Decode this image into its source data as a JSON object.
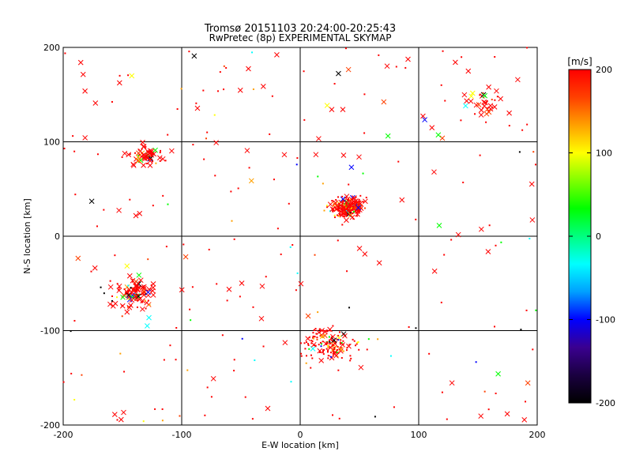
{
  "chart_data": {
    "type": "scatter",
    "title": "Tromsø 20151103 20:24:00-20:25:43",
    "subtitle": "RwPretec (8p) EXPERIMENTAL SKYMAP",
    "xlabel": "E-W location [km]",
    "ylabel": "N-S location [km]",
    "xlim": [
      -200,
      200
    ],
    "ylim": [
      -200,
      200
    ],
    "xticks": [
      "-200",
      "-100",
      "0",
      "100",
      "200"
    ],
    "yticks": [
      "200",
      "100",
      "0",
      "-100",
      "-200"
    ],
    "grid": true,
    "colorbar": {
      "label": "[m/s]",
      "range": [
        -200,
        200
      ],
      "ticks": [
        "200",
        "100",
        "0",
        "-100",
        "-200"
      ],
      "colormap": [
        "#000000",
        "#1a0040",
        "#3a0090",
        "#0000ff",
        "#00a0ff",
        "#00ffff",
        "#00ff80",
        "#00ff00",
        "#80ff00",
        "#ffff00",
        "#ffa000",
        "#ff4000",
        "#ff0000"
      ]
    },
    "marker_types": [
      "x",
      "point"
    ]
  }
}
